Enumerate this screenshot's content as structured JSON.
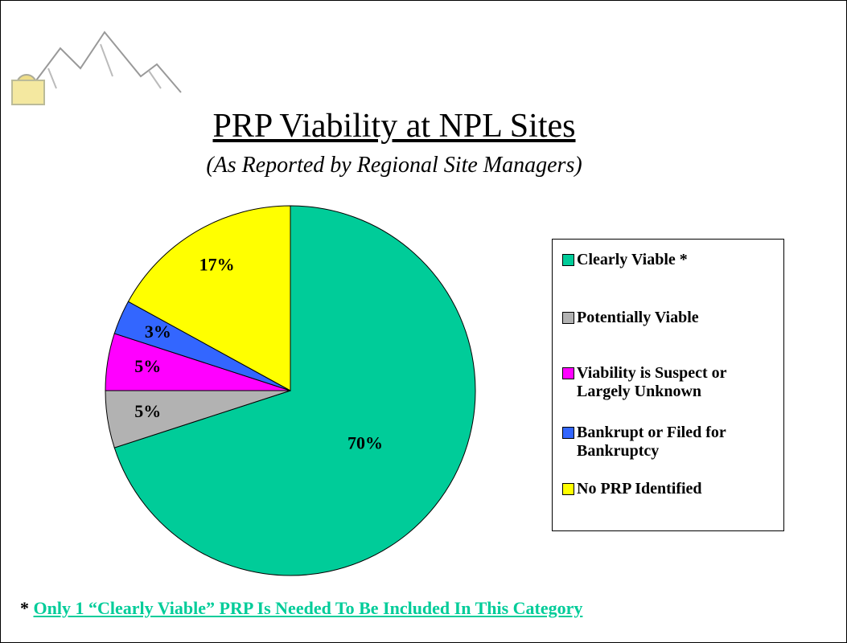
{
  "chart_data": {
    "type": "pie",
    "title": "PRP Viability at NPL Sites",
    "subtitle": "(As Reported by Regional Site Managers)",
    "categories": [
      "Clearly Viable *",
      "Potentially Viable",
      "Viability is Suspect or Largely Unknown",
      "Bankrupt or Filed for Bankruptcy",
      "No PRP Identified"
    ],
    "values": [
      70,
      5,
      5,
      3,
      17
    ],
    "value_labels": [
      "70%",
      "5%",
      "5%",
      "3%",
      "17%"
    ],
    "colors": [
      "#00cc99",
      "#b2b2b2",
      "#ff00ff",
      "#3366ff",
      "#ffff00"
    ],
    "footnote_mark": "*",
    "footnote": "Only 1 “Clearly Viable” PRP Is Needed To Be Included In This Category"
  }
}
